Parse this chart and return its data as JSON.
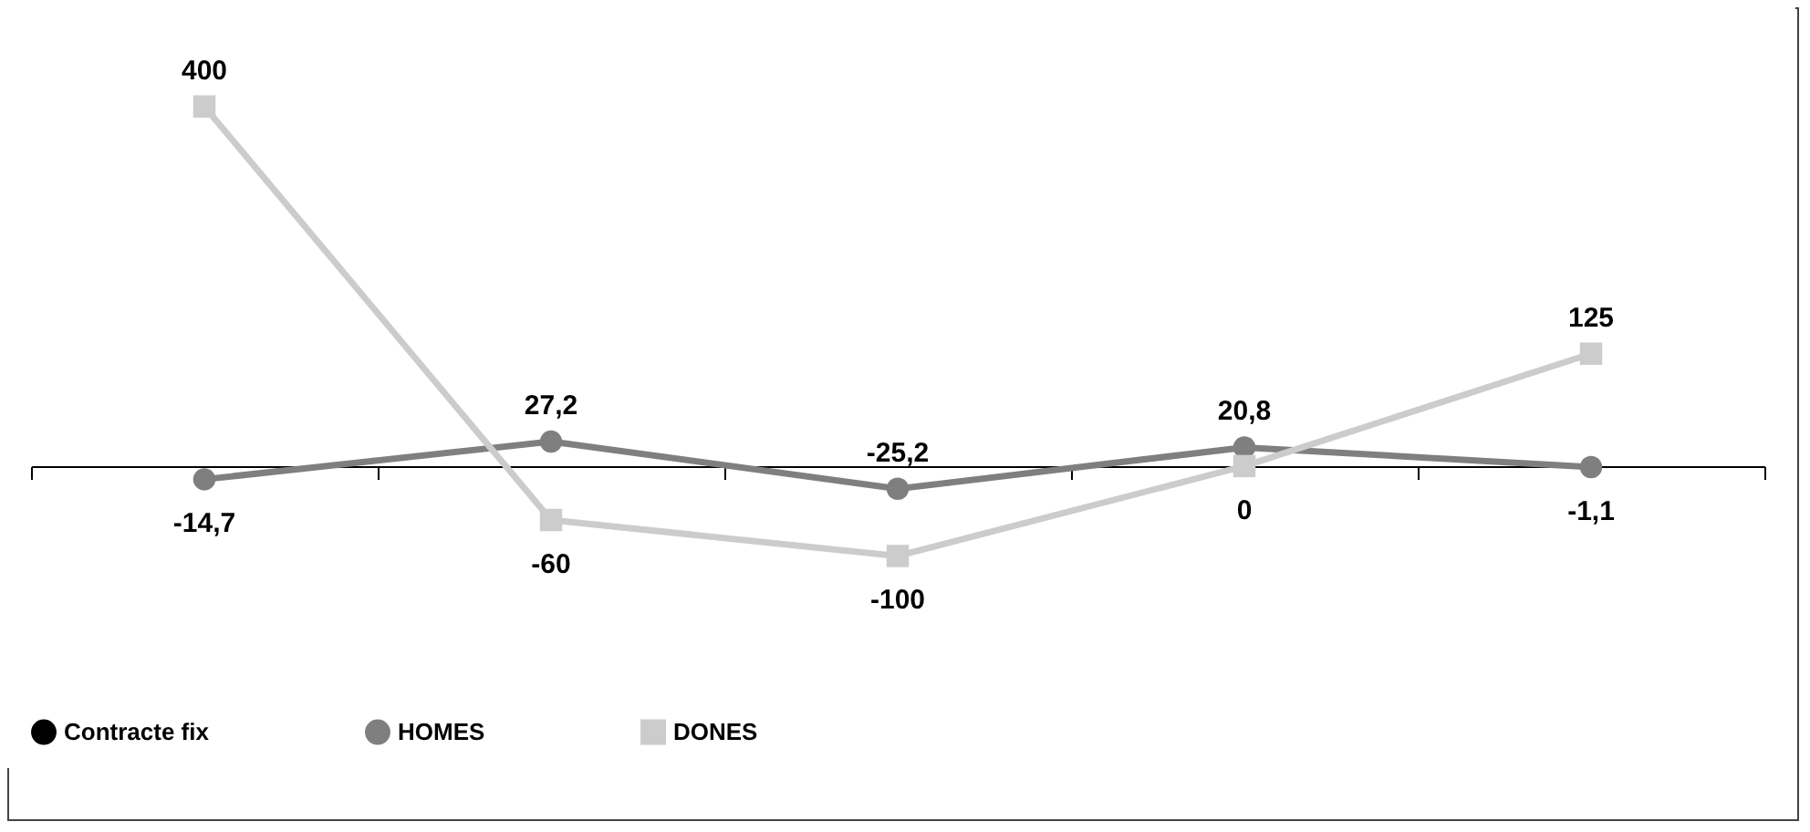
{
  "chart_data": {
    "type": "line",
    "categories": [
      null,
      null,
      null,
      null,
      null
    ],
    "tick_labels": false,
    "grid": false,
    "legend": "bottom",
    "line_style": "solid",
    "series": [
      {
        "name": "Contracte fix",
        "color": "#000000",
        "marker": "circle",
        "values": [
          null,
          null,
          null,
          null,
          null
        ]
      },
      {
        "name": "HOMES",
        "color": "#7f7f7f",
        "marker": "circle",
        "values": [
          -14.7,
          27.2,
          -25.2,
          20.8,
          -1.1
        ],
        "value_labels": [
          "-14,7",
          "27,2",
          "-25,2",
          "20,8",
          "-1,1"
        ]
      },
      {
        "name": "DONES",
        "color": "#cccccc",
        "marker": "square",
        "values": [
          400,
          -60,
          -100,
          0,
          125
        ],
        "value_labels": [
          "400",
          "-60",
          "-100",
          "0",
          "125"
        ]
      }
    ]
  }
}
